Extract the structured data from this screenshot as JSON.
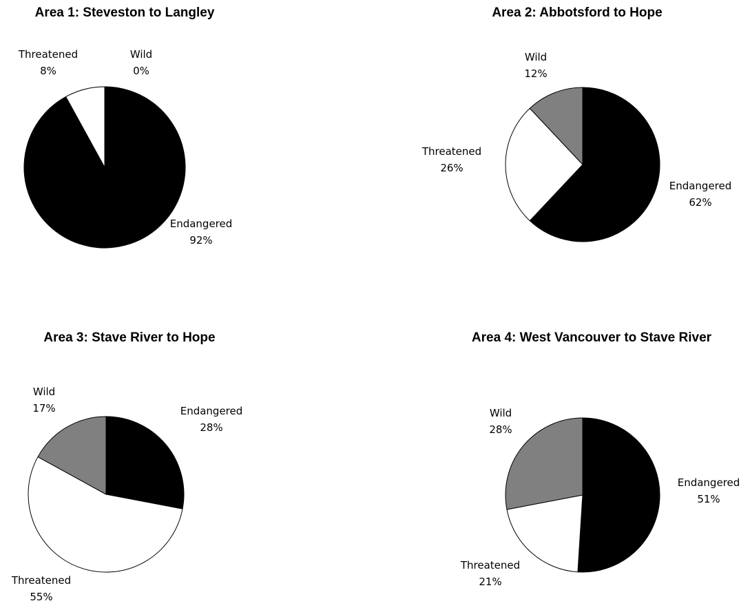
{
  "colors": {
    "Endangered": "#000000",
    "Threatened": "#ffffff",
    "Wild": "#808080"
  },
  "chart_data": [
    {
      "type": "pie",
      "title": "Area 1: Steveston to Langley",
      "slices": [
        {
          "name": "Endangered",
          "value": 92,
          "label": "92%"
        },
        {
          "name": "Threatened",
          "value": 8,
          "label": "8%"
        },
        {
          "name": "Wild",
          "value": 0,
          "label": "0%"
        }
      ]
    },
    {
      "type": "pie",
      "title": "Area 2: Abbotsford to Hope",
      "slices": [
        {
          "name": "Endangered",
          "value": 62,
          "label": "62%"
        },
        {
          "name": "Threatened",
          "value": 26,
          "label": "26%"
        },
        {
          "name": "Wild",
          "value": 12,
          "label": "12%"
        }
      ]
    },
    {
      "type": "pie",
      "title": "Area 3: Stave River to Hope",
      "slices": [
        {
          "name": "Endangered",
          "value": 28,
          "label": "28%"
        },
        {
          "name": "Threatened",
          "value": 55,
          "label": "55%"
        },
        {
          "name": "Wild",
          "value": 17,
          "label": "17%"
        }
      ]
    },
    {
      "type": "pie",
      "title": "Area 4: West Vancouver to Stave River",
      "slices": [
        {
          "name": "Endangered",
          "value": 51,
          "label": "51%"
        },
        {
          "name": "Threatened",
          "value": 21,
          "label": "21%"
        },
        {
          "name": "Wild",
          "value": 28,
          "label": "28%"
        }
      ]
    }
  ]
}
